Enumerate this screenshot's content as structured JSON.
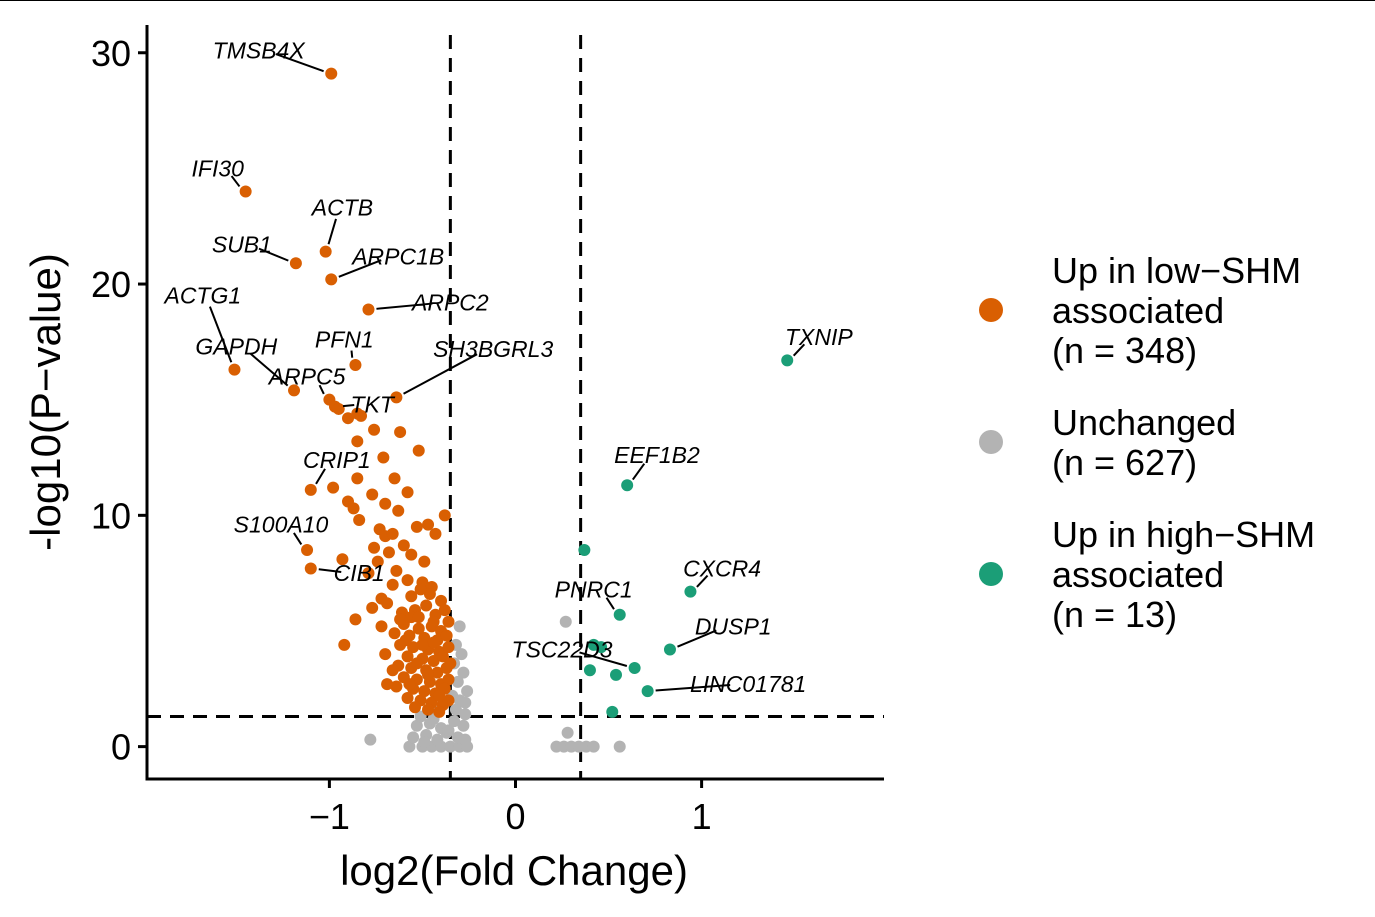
{
  "chart_data": {
    "type": "scatter",
    "xlabel": "log2(Fold Change)",
    "ylabel": "-log10(P−value)",
    "xlim": [
      -1.98,
      1.98
    ],
    "ylim": [
      -1.4,
      31.2
    ],
    "x_ticks": [
      {
        "value": -1,
        "label": "−1"
      },
      {
        "value": 0,
        "label": "0"
      },
      {
        "value": 1,
        "label": "1"
      }
    ],
    "y_ticks": [
      {
        "value": 0,
        "label": "0"
      },
      {
        "value": 10,
        "label": "10"
      },
      {
        "value": 20,
        "label": "20"
      },
      {
        "value": 30,
        "label": "30"
      }
    ],
    "thresholds": {
      "vlines": [
        -0.35,
        0.35
      ],
      "hline": 1.3
    },
    "grid": false,
    "legend_position": "right",
    "series": [
      {
        "key": "low",
        "color": "#D95F02",
        "legend": [
          "Up in low−SHM",
          "associated",
          "(n = 348)"
        ],
        "points": [
          [
            -0.99,
            29.1
          ],
          [
            -1.45,
            24.0
          ],
          [
            -1.02,
            21.4
          ],
          [
            -1.18,
            20.9
          ],
          [
            -0.99,
            20.2
          ],
          [
            -0.79,
            18.9
          ],
          [
            -1.51,
            16.3
          ],
          [
            -0.86,
            16.5
          ],
          [
            -1.19,
            15.4
          ],
          [
            -1.0,
            15.0
          ],
          [
            -0.64,
            15.1
          ],
          [
            -0.97,
            14.7
          ],
          [
            -0.95,
            14.6
          ],
          [
            -0.9,
            14.2
          ],
          [
            -0.85,
            14.4
          ],
          [
            -0.83,
            14.3
          ],
          [
            -0.76,
            13.7
          ],
          [
            -0.85,
            13.2
          ],
          [
            -0.62,
            13.6
          ],
          [
            -0.52,
            12.8
          ],
          [
            -0.71,
            12.5
          ],
          [
            -1.1,
            11.1
          ],
          [
            -0.85,
            11.6
          ],
          [
            -0.98,
            11.2
          ],
          [
            -0.65,
            11.6
          ],
          [
            -0.58,
            11.0
          ],
          [
            -0.77,
            10.9
          ],
          [
            -0.9,
            10.6
          ],
          [
            -0.87,
            10.3
          ],
          [
            -0.7,
            10.5
          ],
          [
            -0.63,
            10.2
          ],
          [
            -0.84,
            9.8
          ],
          [
            -0.73,
            9.4
          ],
          [
            -0.43,
            9.2
          ],
          [
            -0.53,
            9.5
          ],
          [
            -0.47,
            9.6
          ],
          [
            -0.38,
            10.0
          ],
          [
            -0.7,
            9.1
          ],
          [
            -0.66,
            9.2
          ],
          [
            -0.76,
            8.6
          ],
          [
            -0.68,
            8.4
          ],
          [
            -0.6,
            8.7
          ],
          [
            -0.93,
            8.1
          ],
          [
            -0.74,
            8.0
          ],
          [
            -0.56,
            8.3
          ],
          [
            -0.49,
            8.0
          ],
          [
            -1.12,
            8.5
          ],
          [
            -0.79,
            7.5
          ],
          [
            -0.64,
            7.6
          ],
          [
            -1.1,
            7.7
          ],
          [
            -0.66,
            7.0
          ],
          [
            -0.58,
            7.2
          ],
          [
            -0.5,
            7.1
          ],
          [
            -0.45,
            6.9
          ],
          [
            -0.72,
            6.4
          ],
          [
            -0.69,
            6.2
          ],
          [
            -0.56,
            6.5
          ],
          [
            -0.46,
            6.6
          ],
          [
            -0.48,
            6.1
          ],
          [
            -0.4,
            6.3
          ],
          [
            -0.77,
            6.0
          ],
          [
            -0.61,
            5.8
          ],
          [
            -0.54,
            5.9
          ],
          [
            -0.43,
            5.7
          ],
          [
            -0.38,
            5.9
          ],
          [
            -0.86,
            5.5
          ],
          [
            -0.72,
            5.2
          ],
          [
            -0.6,
            5.3
          ],
          [
            -0.52,
            5.1
          ],
          [
            -0.45,
            5.2
          ],
          [
            -0.4,
            5.0
          ],
          [
            -0.36,
            5.4
          ],
          [
            -0.65,
            4.9
          ],
          [
            -0.57,
            4.8
          ],
          [
            -0.49,
            4.7
          ],
          [
            -0.42,
            4.6
          ],
          [
            -0.37,
            4.8
          ],
          [
            -0.62,
            4.4
          ],
          [
            -0.55,
            4.3
          ],
          [
            -0.47,
            4.2
          ],
          [
            -0.41,
            4.1
          ],
          [
            -0.36,
            4.3
          ],
          [
            -0.92,
            4.4
          ],
          [
            -0.7,
            4.0
          ],
          [
            -0.58,
            3.9
          ],
          [
            -0.5,
            3.8
          ],
          [
            -0.44,
            3.7
          ],
          [
            -0.39,
            3.9
          ],
          [
            -0.63,
            3.5
          ],
          [
            -0.56,
            3.4
          ],
          [
            -0.48,
            3.3
          ],
          [
            -0.42,
            3.2
          ],
          [
            -0.37,
            3.4
          ],
          [
            -0.6,
            3.0
          ],
          [
            -0.53,
            2.9
          ],
          [
            -0.46,
            2.8
          ],
          [
            -0.4,
            2.7
          ],
          [
            -0.36,
            2.9
          ],
          [
            -0.64,
            2.6
          ],
          [
            -0.55,
            2.5
          ],
          [
            -0.49,
            2.4
          ],
          [
            -0.43,
            2.3
          ],
          [
            -0.38,
            2.5
          ],
          [
            -0.58,
            2.1
          ],
          [
            -0.51,
            2.0
          ],
          [
            -0.45,
            1.9
          ],
          [
            -0.39,
            1.8
          ],
          [
            -0.36,
            2.0
          ],
          [
            -0.54,
            1.7
          ],
          [
            -0.47,
            1.6
          ],
          [
            -0.41,
            1.5
          ],
          [
            -0.56,
            5.6
          ],
          [
            -0.51,
            6.8
          ],
          [
            -0.44,
            4.5
          ],
          [
            -0.59,
            4.6
          ],
          [
            -0.53,
            3.6
          ],
          [
            -0.47,
            3.1
          ],
          [
            -0.41,
            2.2
          ],
          [
            -0.57,
            2.7
          ],
          [
            -0.5,
            4.4
          ],
          [
            -0.62,
            5.5
          ],
          [
            -0.44,
            5.4
          ],
          [
            -0.52,
            5.6
          ],
          [
            -0.66,
            3.3
          ],
          [
            -0.69,
            2.7
          ],
          [
            -0.35,
            3.6
          ]
        ]
      },
      {
        "key": "unchanged",
        "color": "#B3B3B3",
        "legend": [
          "Unchanged",
          "(n = 627)"
        ],
        "points": [
          [
            -0.78,
            0.3
          ],
          [
            -0.57,
            0.0
          ],
          [
            -0.5,
            0.0
          ],
          [
            -0.45,
            0.0
          ],
          [
            -0.4,
            0.0
          ],
          [
            -0.35,
            0.0
          ],
          [
            -0.3,
            0.0
          ],
          [
            -0.26,
            0.0
          ],
          [
            -0.55,
            0.4
          ],
          [
            -0.48,
            0.5
          ],
          [
            -0.42,
            0.3
          ],
          [
            -0.37,
            0.6
          ],
          [
            -0.31,
            0.4
          ],
          [
            -0.27,
            0.3
          ],
          [
            -0.53,
            0.9
          ],
          [
            -0.46,
            1.0
          ],
          [
            -0.4,
            0.8
          ],
          [
            -0.33,
            1.1
          ],
          [
            -0.28,
            0.9
          ],
          [
            -0.51,
            1.3
          ],
          [
            -0.43,
            1.5
          ],
          [
            -0.32,
            1.6
          ],
          [
            -0.27,
            1.4
          ],
          [
            -0.3,
            2.0
          ],
          [
            -0.26,
            2.4
          ],
          [
            -0.31,
            2.8
          ],
          [
            -0.28,
            3.2
          ],
          [
            -0.33,
            3.6
          ],
          [
            -0.29,
            4.0
          ],
          [
            -0.32,
            4.4
          ],
          [
            -0.3,
            5.2
          ],
          [
            -0.27,
            1.9
          ],
          [
            -0.34,
            2.2
          ],
          [
            -0.44,
            1.2
          ],
          [
            -0.38,
            1.9
          ],
          [
            0.22,
            0.0
          ],
          [
            0.26,
            0.0
          ],
          [
            0.3,
            0.0
          ],
          [
            0.34,
            0.0
          ],
          [
            0.38,
            0.0
          ],
          [
            0.42,
            0.0
          ],
          [
            0.56,
            0.0
          ],
          [
            0.28,
            0.6
          ],
          [
            0.27,
            5.4
          ],
          [
            -0.36,
            0.7
          ],
          [
            -0.49,
            0.2
          ]
        ]
      },
      {
        "key": "high",
        "color": "#1B9E77",
        "legend": [
          "Up in high−SHM",
          "associated",
          "(n = 13)"
        ],
        "points": [
          [
            1.46,
            16.7
          ],
          [
            0.6,
            11.3
          ],
          [
            0.37,
            8.5
          ],
          [
            0.94,
            6.7
          ],
          [
            0.56,
            5.7
          ],
          [
            0.83,
            4.2
          ],
          [
            0.64,
            3.4
          ],
          [
            0.54,
            3.1
          ],
          [
            0.4,
            3.3
          ],
          [
            0.71,
            2.4
          ],
          [
            0.52,
            1.5
          ],
          [
            0.42,
            4.4
          ],
          [
            0.46,
            4.3
          ]
        ]
      }
    ],
    "labels": [
      {
        "text": "TMSB4X",
        "x": -0.99,
        "y": 29.1,
        "lx": -1.38,
        "ly": 30.1,
        "anchor": "middle"
      },
      {
        "text": "IFI30",
        "x": -1.45,
        "y": 24.0,
        "lx": -1.6,
        "ly": 25.0,
        "anchor": "middle"
      },
      {
        "text": "ACTB",
        "x": -1.02,
        "y": 21.4,
        "lx": -0.93,
        "ly": 23.3,
        "anchor": "middle"
      },
      {
        "text": "SUB1",
        "x": -1.18,
        "y": 20.9,
        "lx": -1.47,
        "ly": 21.7,
        "anchor": "middle"
      },
      {
        "text": "ARPC1B",
        "x": -0.99,
        "y": 20.2,
        "lx": -0.63,
        "ly": 21.2,
        "anchor": "middle"
      },
      {
        "text": "ARPC2",
        "x": -0.79,
        "y": 18.9,
        "lx": -0.35,
        "ly": 19.2,
        "anchor": "middle"
      },
      {
        "text": "ACTG1",
        "x": -1.51,
        "y": 16.3,
        "lx": -1.68,
        "ly": 19.5,
        "anchor": "middle"
      },
      {
        "text": "GAPDH",
        "x": -1.19,
        "y": 15.4,
        "lx": -1.5,
        "ly": 17.3,
        "anchor": "middle"
      },
      {
        "text": "PFN1",
        "x": -0.86,
        "y": 16.5,
        "lx": -0.92,
        "ly": 17.6,
        "anchor": "middle"
      },
      {
        "text": "SH3BGRL3",
        "x": -0.64,
        "y": 15.1,
        "lx": -0.12,
        "ly": 17.2,
        "anchor": "middle"
      },
      {
        "text": "ARPC5",
        "x": -1.0,
        "y": 15.0,
        "lx": -1.12,
        "ly": 16.0,
        "anchor": "middle"
      },
      {
        "text": "TKT",
        "x": -0.97,
        "y": 14.7,
        "lx": -0.77,
        "ly": 14.8,
        "anchor": "middle"
      },
      {
        "text": "CRIP1",
        "x": -1.1,
        "y": 11.1,
        "lx": -0.96,
        "ly": 12.4,
        "anchor": "middle"
      },
      {
        "text": "S100A10",
        "x": -1.12,
        "y": 8.5,
        "lx": -1.26,
        "ly": 9.6,
        "anchor": "middle"
      },
      {
        "text": "CIB1",
        "x": -1.1,
        "y": 7.7,
        "lx": -0.84,
        "ly": 7.5,
        "anchor": "middle"
      },
      {
        "text": "TXNIP",
        "x": 1.46,
        "y": 16.7,
        "lx": 1.63,
        "ly": 17.7,
        "anchor": "middle"
      },
      {
        "text": "EEF1B2",
        "x": 0.6,
        "y": 11.3,
        "lx": 0.76,
        "ly": 12.6,
        "anchor": "middle"
      },
      {
        "text": "CXCR4",
        "x": 0.94,
        "y": 6.7,
        "lx": 1.11,
        "ly": 7.7,
        "anchor": "middle"
      },
      {
        "text": "PNRC1",
        "x": 0.56,
        "y": 5.7,
        "lx": 0.42,
        "ly": 6.8,
        "anchor": "middle"
      },
      {
        "text": "DUSP1",
        "x": 0.83,
        "y": 4.2,
        "lx": 1.17,
        "ly": 5.2,
        "anchor": "middle"
      },
      {
        "text": "TSC22D3",
        "x": 0.64,
        "y": 3.4,
        "lx": 0.25,
        "ly": 4.2,
        "anchor": "middle"
      },
      {
        "text": "LINC01781",
        "x": 0.71,
        "y": 2.4,
        "lx": 1.25,
        "ly": 2.7,
        "anchor": "middle"
      }
    ]
  }
}
